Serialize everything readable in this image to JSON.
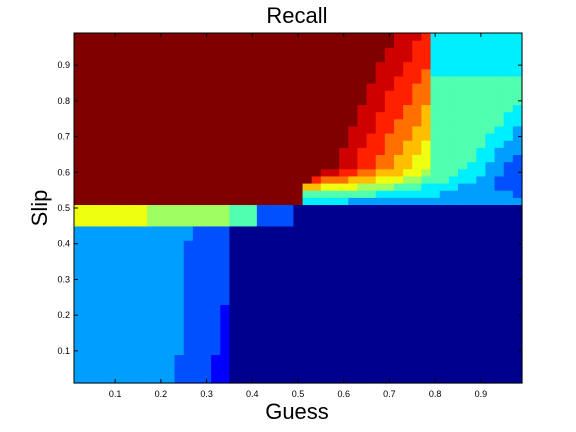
{
  "chart_data": {
    "type": "heatmap",
    "title": "Recall",
    "xlabel": "Guess",
    "ylabel": "Slip",
    "xlim": [
      0.01,
      0.99
    ],
    "ylim": [
      0.01,
      0.99
    ],
    "x_ticks": [
      0.1,
      0.2,
      0.3,
      0.4,
      0.5,
      0.6,
      0.7,
      0.8,
      0.9
    ],
    "x_tick_labels": [
      "0.1",
      "0.2",
      "0.3",
      "0.4",
      "0.5",
      "0.6",
      "0.7",
      "0.8",
      "0.9"
    ],
    "y_ticks": [
      0.1,
      0.2,
      0.3,
      0.4,
      0.5,
      0.6,
      0.7,
      0.8,
      0.9
    ],
    "y_tick_labels": [
      "0.1",
      "0.2",
      "0.3",
      "0.4",
      "0.5",
      "0.6",
      "0.7",
      "0.8",
      "0.9"
    ],
    "colormap": "jet",
    "grid": false,
    "levels": [
      "#00008f",
      "#0000ff",
      "#0050ff",
      "#009fff",
      "#00efff",
      "#50ffaf",
      "#9fff60",
      "#efff10",
      "#ffbf00",
      "#ff7000",
      "#ff2000",
      "#cf0000",
      "#800000"
    ],
    "regions": [
      {
        "name": "dark-red plateau",
        "value_level": 12,
        "guess_range": [
          0.01,
          0.64
        ],
        "slip_range": [
          0.5,
          0.99
        ]
      },
      {
        "name": "dark-blue plateau",
        "value_level": 0,
        "guess_range": [
          0.35,
          0.99
        ],
        "slip_range": [
          0.01,
          0.5
        ]
      },
      {
        "name": "light-blue lower-left region",
        "value_level": 3,
        "guess_range": [
          0.01,
          0.2
        ],
        "slip_range": [
          0.01,
          0.48
        ]
      },
      {
        "name": "cyan-green band",
        "value_level": 5,
        "guess_range": [
          0.8,
          0.99
        ],
        "slip_range": [
          0.58,
          0.99
        ]
      }
    ]
  }
}
